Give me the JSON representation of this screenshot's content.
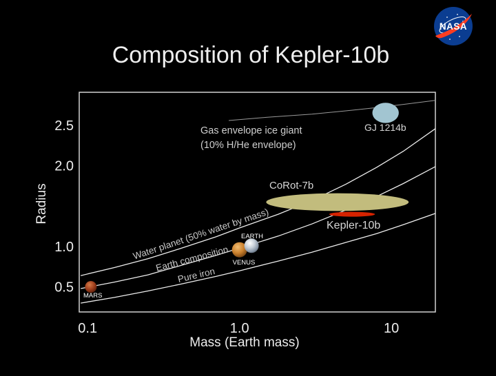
{
  "slide": {
    "title": "Composition of Kepler-10b",
    "background_color": "#000000",
    "title_color": "#eeeeee"
  },
  "nasa_logo": {
    "label": "NASA",
    "circle_color": "#0b3d91",
    "swoosh_color": "#fc3d21"
  },
  "chart_data": {
    "type": "line",
    "title": "Composition of Kepler-10b",
    "xlabel": "Mass (Earth mass)",
    "ylabel": "Radius",
    "x_scale": "log",
    "y_scale": "linear",
    "xlim": [
      0.088,
      19.5
    ],
    "ylim": [
      0.19,
      2.91
    ],
    "grid": false,
    "x_ticks": [
      {
        "value": 0.1,
        "label": "0.1"
      },
      {
        "value": 1.0,
        "label": "1.0"
      },
      {
        "value": 10,
        "label": "10"
      }
    ],
    "y_ticks": [
      {
        "value": 2.5,
        "label": "2.5"
      },
      {
        "value": 2.0,
        "label": "2.0"
      },
      {
        "value": 1.0,
        "label": "1.0"
      },
      {
        "value": 0.5,
        "label": "0.5"
      }
    ],
    "series": [
      {
        "name": "pure-iron",
        "label": "Pure iron",
        "color": "#ededed",
        "points": [
          [
            0.09,
            0.3
          ],
          [
            0.15,
            0.37
          ],
          [
            0.25,
            0.45
          ],
          [
            0.4,
            0.53
          ],
          [
            0.7,
            0.63
          ],
          [
            1,
            0.7
          ],
          [
            1.8,
            0.82
          ],
          [
            3,
            0.93
          ],
          [
            5,
            1.05
          ],
          [
            8,
            1.16
          ],
          [
            12,
            1.27
          ],
          [
            19.5,
            1.41
          ]
        ]
      },
      {
        "name": "earth-composition",
        "label": "Earth composition",
        "color": "#ededed",
        "points": [
          [
            0.09,
            0.48
          ],
          [
            0.15,
            0.56
          ],
          [
            0.25,
            0.65
          ],
          [
            0.4,
            0.76
          ],
          [
            0.7,
            0.89
          ],
          [
            1,
            0.98
          ],
          [
            1.8,
            1.13
          ],
          [
            3,
            1.28
          ],
          [
            5,
            1.45
          ],
          [
            8,
            1.62
          ],
          [
            12,
            1.78
          ],
          [
            19.5,
            1.99
          ]
        ]
      },
      {
        "name": "water-planet",
        "label": "Water planet (50% water by mass)",
        "color": "#ededed",
        "points": [
          [
            0.09,
            0.64
          ],
          [
            0.15,
            0.74
          ],
          [
            0.25,
            0.85
          ],
          [
            0.4,
            0.97
          ],
          [
            0.7,
            1.12
          ],
          [
            1,
            1.23
          ],
          [
            1.8,
            1.4
          ],
          [
            3,
            1.57
          ],
          [
            5,
            1.77
          ],
          [
            8,
            1.98
          ],
          [
            12,
            2.18
          ],
          [
            19.5,
            2.46
          ]
        ]
      },
      {
        "name": "gas-envelope-ice-giant",
        "label": "Gas envelope ice giant",
        "label_line2": "(10% H/He envelope)",
        "color": "#9a9a9a",
        "points": [
          [
            0.85,
            2.56
          ],
          [
            1.5,
            2.6
          ],
          [
            3,
            2.64
          ],
          [
            5,
            2.68
          ],
          [
            8,
            2.72
          ],
          [
            12,
            2.76
          ],
          [
            19.5,
            2.81
          ]
        ]
      }
    ],
    "solar_system_planets": [
      {
        "name": "MARS",
        "mass": 0.105,
        "radius": 0.5
      },
      {
        "name": "VENUS",
        "mass": 1.0,
        "radius": 0.96
      },
      {
        "name": "EARTH",
        "mass": 1.2,
        "radius": 1.01
      }
    ],
    "exoplanets": [
      {
        "name": "CoRot-7b",
        "mass": 4.5,
        "radius": 1.55,
        "mass_range": [
          1.5,
          13
        ],
        "radius_range": [
          1.44,
          1.66
        ],
        "color": "#c2bc7d"
      },
      {
        "name": "Kepler-10b",
        "mass": 5.4,
        "radius": 1.4,
        "mass_range": [
          3.9,
          7.8
        ],
        "radius_range": [
          1.37,
          1.43
        ],
        "color": "#d62300"
      },
      {
        "name": "GJ 1214b",
        "mass": 9.3,
        "radius": 2.66,
        "mass_range": [
          7.5,
          11.2
        ],
        "radius_range": [
          2.53,
          2.78
        ],
        "color": "#a2c5d1"
      }
    ]
  }
}
